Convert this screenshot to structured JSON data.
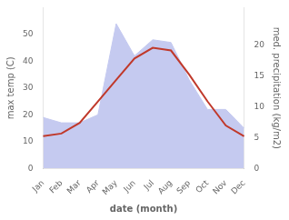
{
  "chart_data": {
    "type": "line",
    "categories": [
      "Jan",
      "Feb",
      "Mar",
      "Apr",
      "May",
      "Jun",
      "Jul",
      "Aug",
      "Sep",
      "Oct",
      "Nov",
      "Dec"
    ],
    "series": [
      {
        "type": "area",
        "color": "#c5caf0",
        "values": [
          19,
          17,
          17,
          20,
          54,
          42,
          48,
          47,
          33,
          22,
          22,
          15
        ]
      },
      {
        "type": "line",
        "color": "#c0392b",
        "values": [
          12,
          13,
          17,
          25,
          33,
          41,
          45,
          44,
          35,
          25,
          16,
          12
        ]
      }
    ],
    "xlabel": "date (month)",
    "ylabel": "max temp (C)",
    "y2label": "med. precipitation (kg/m2)",
    "ylim": [
      0,
      60
    ],
    "yticks": [
      0,
      10,
      20,
      30,
      40,
      50
    ],
    "y2lim": [
      0,
      26
    ],
    "y2ticks": [
      0,
      5,
      10,
      15,
      20
    ],
    "grid": false
  }
}
